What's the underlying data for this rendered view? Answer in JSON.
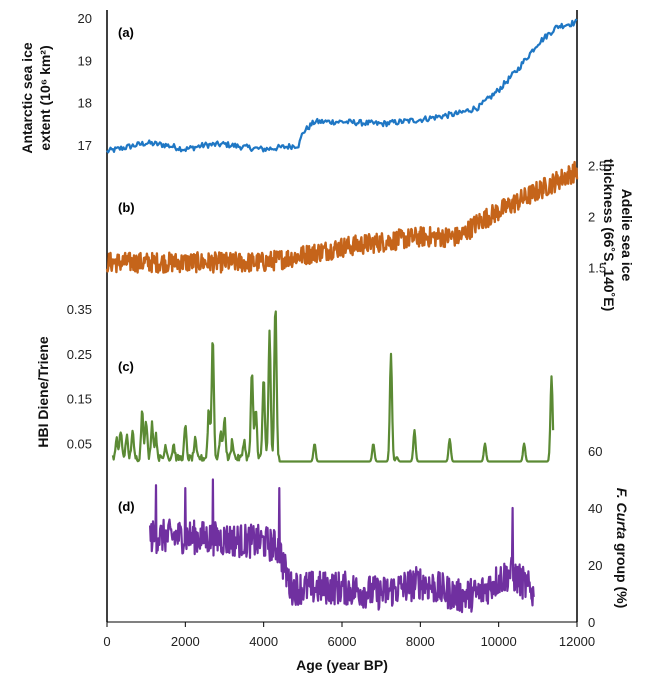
{
  "chart_data": [
    {
      "panel": "(a)",
      "type": "line",
      "color": "#1f77c4",
      "xlabel": "Age (year BP)",
      "ylabel_lines": [
        "Antarctic sea ice",
        "extent (10⁶ km²)"
      ],
      "ylim": [
        16.6,
        20.0
      ],
      "yticks": [
        17,
        18,
        19,
        20
      ],
      "ytick_labels": [
        "17",
        "18",
        "19",
        "20"
      ],
      "trend": {
        "x": [
          0,
          500,
          1000,
          1500,
          2000,
          2500,
          3000,
          3500,
          4000,
          4500,
          4900,
          5000,
          5300,
          6000,
          7000,
          8000,
          9000,
          9500,
          10000,
          10500,
          11000,
          11500,
          12000
        ],
        "y": [
          16.85,
          16.95,
          17.05,
          17.0,
          16.9,
          17.0,
          17.02,
          16.95,
          16.9,
          16.95,
          17.0,
          17.3,
          17.55,
          17.55,
          17.5,
          17.6,
          17.75,
          17.9,
          18.3,
          18.8,
          19.4,
          19.8,
          19.9
        ]
      },
      "noise_amplitude": 0.07,
      "x_range": [
        0,
        12000
      ]
    },
    {
      "panel": "(b)",
      "type": "line",
      "color": "#c5641a",
      "ylabel_lines": [
        "Adelie sea ice",
        "thickness (66˚S, 140˚E)"
      ],
      "ylim": [
        1.3,
        2.65
      ],
      "yticks": [
        1.5,
        2,
        2.5
      ],
      "ytick_labels": [
        "1.5",
        "2",
        "2.5"
      ],
      "trend": {
        "x": [
          0,
          2000,
          4000,
          5000,
          6000,
          7000,
          8000,
          9000,
          9500,
          10000,
          11000,
          12000
        ],
        "y": [
          1.55,
          1.55,
          1.55,
          1.62,
          1.7,
          1.75,
          1.8,
          1.8,
          1.95,
          2.05,
          2.25,
          2.45
        ]
      },
      "noise_amplitude": 0.1,
      "x_range": [
        0,
        12000
      ]
    },
    {
      "panel": "(c)",
      "type": "line",
      "color": "#5b8a34",
      "ylabel": "HBI Diene/Triene",
      "ylim": [
        0.0,
        0.35
      ],
      "yticks": [
        0.05,
        0.15,
        0.25,
        0.35
      ],
      "ytick_labels": [
        "0.05",
        "0.15",
        "0.25",
        "0.35"
      ],
      "baseline": 0.01,
      "x_range": [
        150,
        11400
      ],
      "peaks": {
        "x": [
          250,
          350,
          500,
          650,
          900,
          1000,
          1150,
          1250,
          1500,
          1700,
          2000,
          2250,
          2600,
          2700,
          2900,
          3000,
          3200,
          3500,
          3700,
          3800,
          4000,
          4150,
          4300,
          5300,
          6800,
          7250,
          7400,
          7850,
          8750,
          9650,
          10650,
          11350
        ],
        "y": [
          0.05,
          0.07,
          0.06,
          0.07,
          0.12,
          0.09,
          0.09,
          0.06,
          0.04,
          0.04,
          0.08,
          0.05,
          0.12,
          0.28,
          0.07,
          0.1,
          0.05,
          0.05,
          0.2,
          0.12,
          0.19,
          0.29,
          0.35,
          0.05,
          0.05,
          0.25,
          0.02,
          0.08,
          0.06,
          0.05,
          0.05,
          0.2
        ]
      }
    },
    {
      "panel": "(d)",
      "type": "line",
      "color": "#7030a0",
      "ylabel_italic": "F. Curta",
      "ylabel_rest": " group (%)",
      "ylim": [
        0,
        60
      ],
      "yticks": [
        0,
        20,
        40,
        60
      ],
      "ytick_labels": [
        "0",
        "20",
        "40",
        "60"
      ],
      "x_range": [
        1100,
        10900
      ],
      "trend": {
        "x": [
          1100,
          2000,
          3000,
          4000,
          4400,
          4500,
          4700,
          6000,
          7000,
          8000,
          9000,
          9500,
          10000,
          10300,
          10600,
          10900
        ],
        "y": [
          30,
          30,
          29,
          28,
          26,
          20,
          12,
          12,
          10,
          14,
          9,
          10,
          15,
          17,
          14,
          10
        ]
      },
      "noise_amplitude": 6,
      "spikes": {
        "x": [
          1250,
          2000,
          2700,
          4400,
          10350
        ],
        "y": [
          48,
          47,
          50,
          47,
          40
        ]
      }
    }
  ],
  "xaxis": {
    "min": 0,
    "max": 12000,
    "ticks": [
      0,
      2000,
      4000,
      6000,
      8000,
      10000,
      12000
    ],
    "tick_labels": [
      "0",
      "2000",
      "4000",
      "6000",
      "8000",
      "10000",
      "12000"
    ],
    "label": "Age (year BP)"
  }
}
